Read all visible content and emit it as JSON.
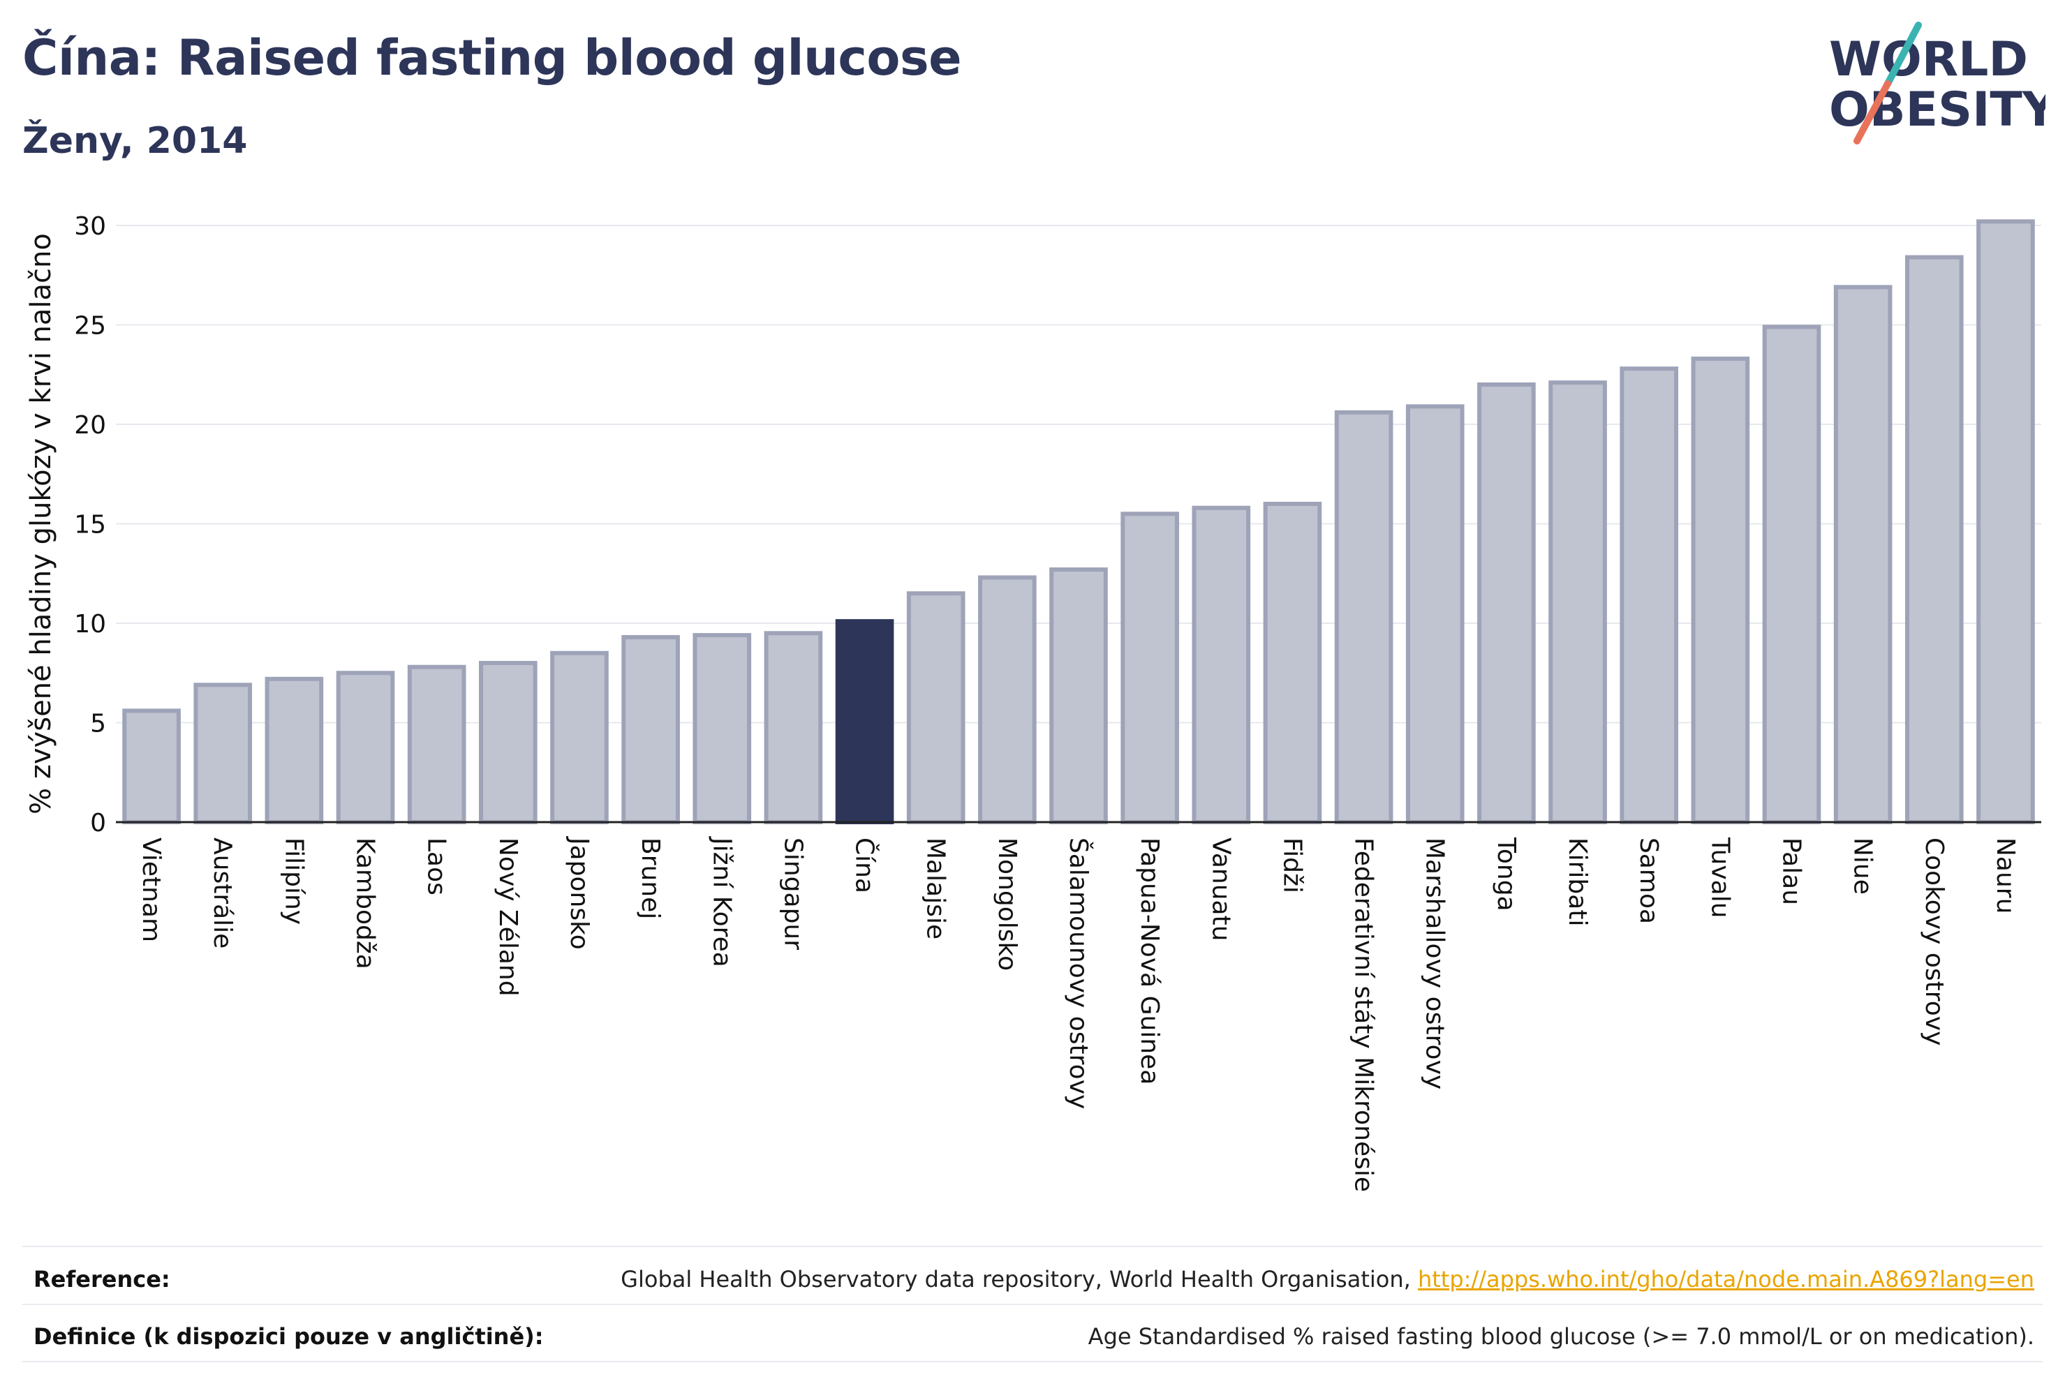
{
  "header": {
    "title": "Čína: Raised fasting blood glucose",
    "subtitle": "Ženy, 2014"
  },
  "logo": {
    "line1": "WORLD",
    "line2": "OBESITY"
  },
  "footer": {
    "reference_label": "Reference:",
    "reference_text": "Global Health Observatory data repository, World Health Organisation, ",
    "reference_link": "http://apps.who.int/gho/data/node.main.A869?lang=en",
    "definition_label": "Definice (k dispozici pouze v angličtině):",
    "definition_text": "Age Standardised % raised fasting blood glucose (>= 7.0 mmol/L or on medication)."
  },
  "colors": {
    "bar_default": "#c0c3d0",
    "bar_border": "#9ea3b8",
    "bar_highlight": "#2d3559",
    "logo_teal": "#3bb3b1",
    "logo_coral": "#e8735a"
  },
  "chart_data": {
    "type": "bar",
    "ylabel": "% zvýšené hladiny glukózy v krvi nalačno",
    "xlabel": "",
    "ylim": [
      0,
      30
    ],
    "yticks": [
      0,
      5,
      10,
      15,
      20,
      25,
      30
    ],
    "grid": true,
    "highlight": "Čína",
    "categories": [
      "Vietnam",
      "Austrálie",
      "Filipíny",
      "Kambodža",
      "Laos",
      "Nový Zéland",
      "Japonsko",
      "Brunej",
      "Jižní Korea",
      "Singapur",
      "Čína",
      "Malajsie",
      "Mongolsko",
      "Šalamounovy ostrovy",
      "Papua-Nová Guinea",
      "Vanuatu",
      "Fidži",
      "Federativní státy Mikronésie",
      "Marshallovy ostrovy",
      "Tonga",
      "Kiribati",
      "Samoa",
      "Tuvalu",
      "Palau",
      "Niue",
      "Cookovy ostrovy",
      "Nauru"
    ],
    "values": [
      5.6,
      6.9,
      7.2,
      7.5,
      7.8,
      8.0,
      8.5,
      9.3,
      9.4,
      9.5,
      10.1,
      11.5,
      12.3,
      12.7,
      15.5,
      15.8,
      16.0,
      20.6,
      20.9,
      22.0,
      22.1,
      22.8,
      23.3,
      24.9,
      26.9,
      28.4,
      30.2
    ]
  }
}
